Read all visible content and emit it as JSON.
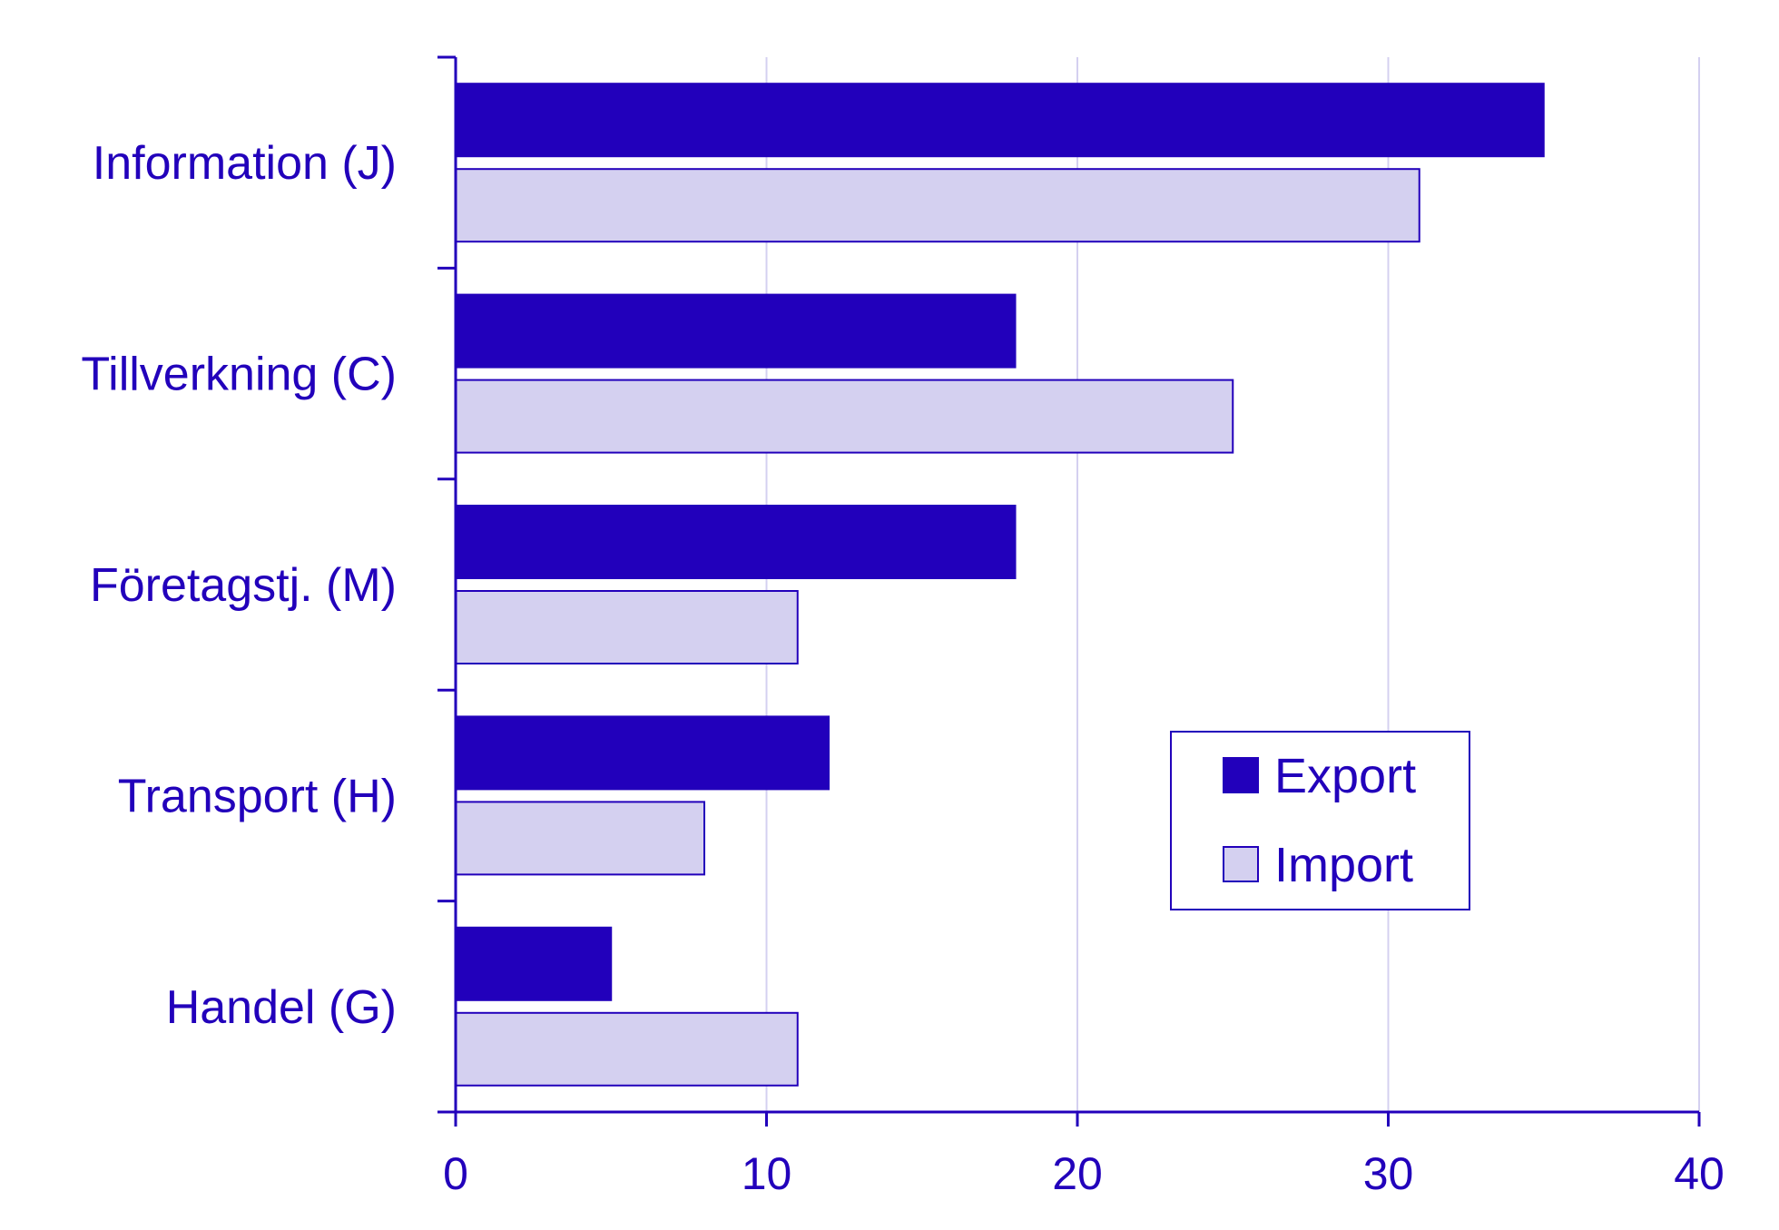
{
  "chart_data": {
    "type": "bar",
    "orientation": "horizontal",
    "title": "",
    "xlabel": "",
    "ylabel": "",
    "categories": [
      "Information (J)",
      "Tillverkning (C)",
      "Företagstj. (M)",
      "Transport (H)",
      "Handel (G)"
    ],
    "series": [
      {
        "name": "Export",
        "color": "#2200bb",
        "values": [
          35,
          18,
          18,
          12,
          5
        ]
      },
      {
        "name": "Import",
        "color": "#d4d0f0",
        "values": [
          31,
          25,
          11,
          8,
          11
        ]
      }
    ],
    "xlim": [
      0,
      40
    ],
    "xticks": [
      "0",
      "10",
      "20",
      "30",
      "40"
    ],
    "grid": "vertical",
    "legend_position": "right-center",
    "colors": {
      "axis": "#2200bb",
      "grid": "#d4d0f0",
      "text": "#2200bb"
    }
  }
}
